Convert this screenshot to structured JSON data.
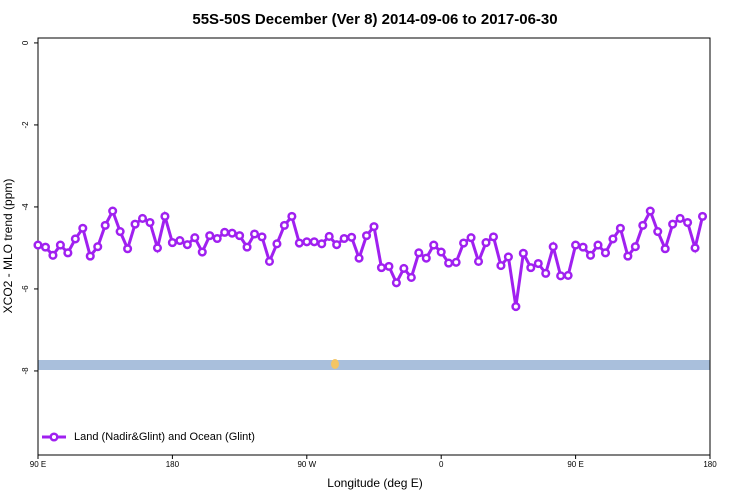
{
  "chart_data": {
    "type": "line",
    "title": "55S-50S December (Ver 8)   2014-09-06 to 2017-06-30",
    "x_label": "Longitude (deg E)",
    "y_label": "XCO2 - MLO trend (ppm)",
    "xlim": [
      90,
      540
    ],
    "xticks": [
      {
        "value": 90,
        "label": "90 E"
      },
      180,
      {
        "value": 270,
        "label": "90 W"
      },
      {
        "value": 360,
        "label": "0"
      },
      {
        "value": 450,
        "label": "90 E"
      },
      {
        "value": 540,
        "label": "180"
      }
    ],
    "ylim": [
      -10.05,
      0.12
    ],
    "yticks": [
      -8,
      -6,
      -4,
      -2,
      0
    ],
    "legend": "bottom-left",
    "series": [
      {
        "name": "Land (Nadir&Glint) and Ocean (Glint)",
        "color": "#a020f0",
        "x": [
          90,
          95,
          100,
          105,
          110,
          115,
          120,
          125,
          130,
          135,
          140,
          145,
          150,
          155,
          160,
          165,
          170,
          175,
          180,
          185,
          190,
          195,
          200,
          205,
          210,
          215,
          220,
          225,
          230,
          235,
          240,
          245,
          250,
          255,
          260,
          265,
          270,
          275,
          280,
          285,
          290,
          295,
          300,
          305,
          310,
          315,
          320,
          325,
          330,
          335,
          340,
          345,
          350,
          355,
          360,
          365,
          370,
          375,
          380,
          385,
          390,
          395,
          400,
          405,
          410,
          415,
          420,
          425,
          430,
          435,
          440,
          445,
          450,
          455,
          460,
          465,
          470,
          475,
          480,
          485,
          490,
          495,
          500,
          505,
          510,
          515,
          520,
          525,
          530,
          535
        ],
        "values": [
          -4.93,
          -4.98,
          -5.18,
          -4.93,
          -5.12,
          -4.78,
          -4.52,
          -5.2,
          -4.97,
          -4.45,
          -4.1,
          -4.6,
          -5.02,
          -4.42,
          -4.28,
          -4.38,
          -5.0,
          -4.23,
          -4.87,
          -4.82,
          -4.92,
          -4.75,
          -5.1,
          -4.7,
          -4.77,
          -4.62,
          -4.64,
          -4.7,
          -4.98,
          -4.66,
          -4.73,
          -5.33,
          -4.9,
          -4.45,
          -4.23,
          -4.88,
          -4.85,
          -4.85,
          -4.9,
          -4.72,
          -4.92,
          -4.77,
          -4.74,
          -5.25,
          -4.7,
          -4.48,
          -5.48,
          -5.45,
          -5.85,
          -5.5,
          -5.72,
          -5.12,
          -5.25,
          -4.93,
          -5.1,
          -5.37,
          -5.35,
          -4.88,
          -4.75,
          -5.33,
          -4.87,
          -4.73,
          -5.43,
          -5.22,
          -6.43,
          -5.13,
          -5.48,
          -5.38,
          -5.62,
          -4.97,
          -5.68,
          -5.67,
          -4.93,
          -4.98,
          -5.18,
          -4.93,
          -5.12,
          -4.78,
          -4.52,
          -5.2,
          -4.97,
          -4.45,
          -4.1,
          -4.6,
          -5.02,
          -4.42,
          -4.28,
          -4.38,
          -5.0,
          -4.23
        ]
      }
    ]
  }
}
